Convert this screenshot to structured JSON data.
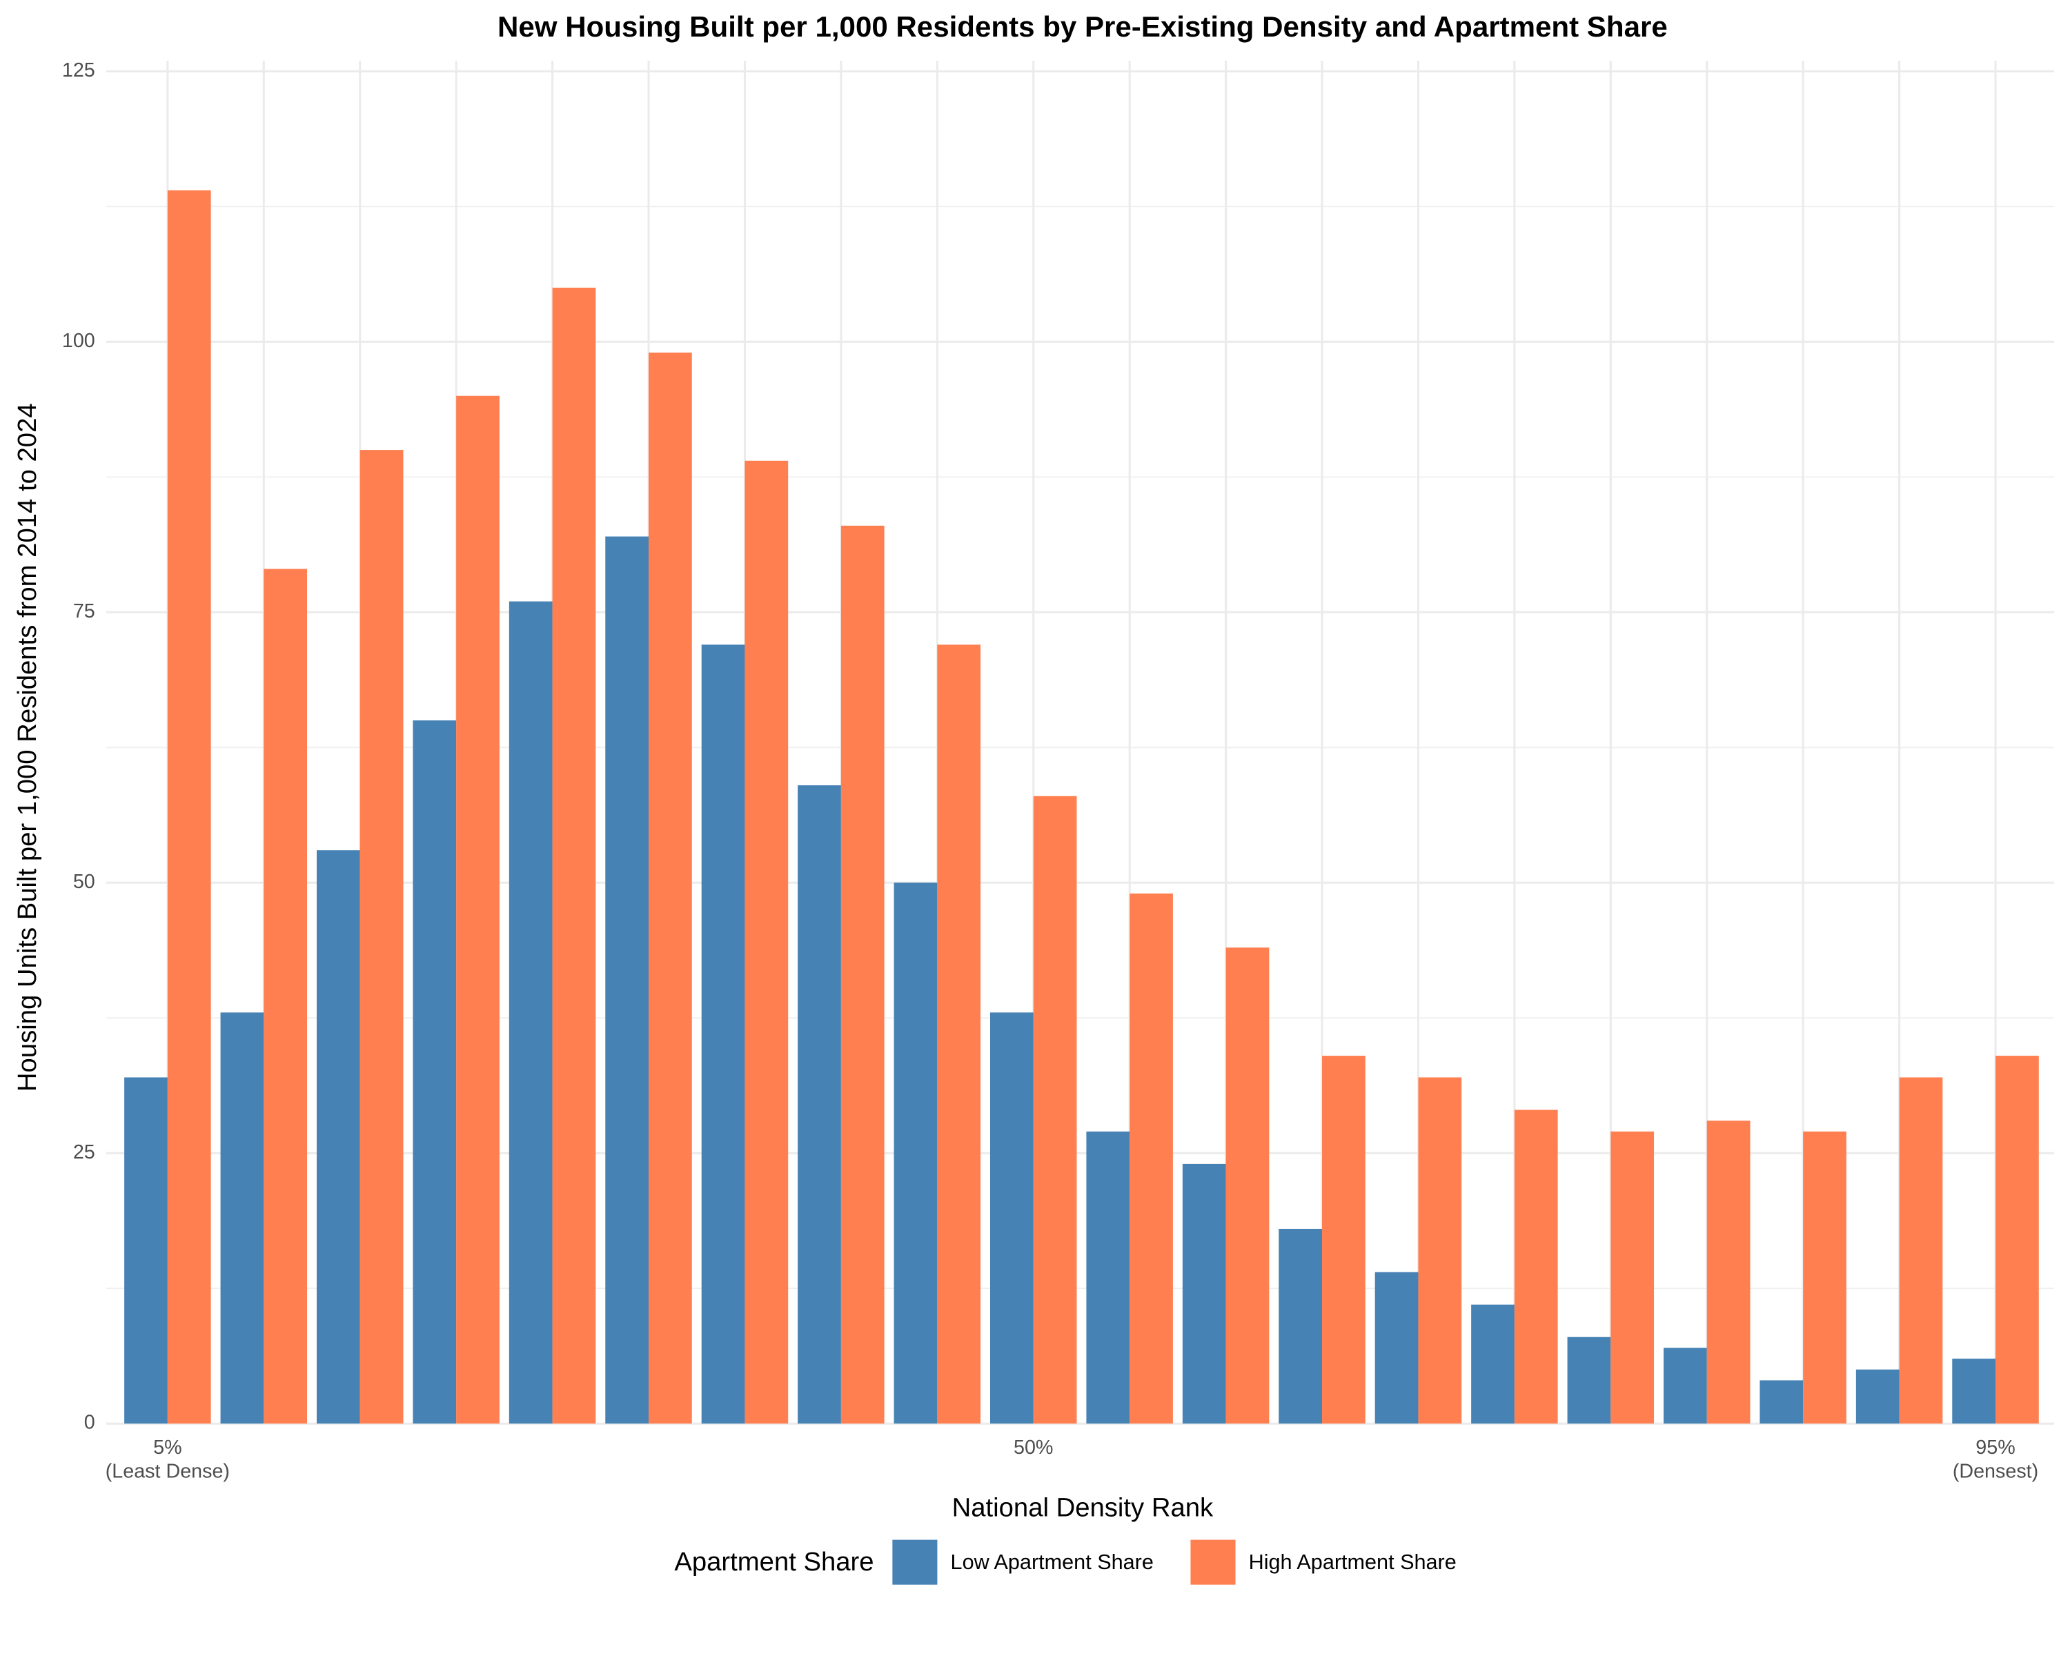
{
  "chart_data": {
    "type": "bar",
    "title": "New Housing Built per 1,000 Residents by Pre-Existing Density and Apartment Share",
    "x_label": "National Density Rank",
    "y_label": "Housing Units Built per 1,000 Residents from 2014 to 2024",
    "legend_title": "Apartment Share",
    "legend_position": "bottom",
    "grid": true,
    "categories": [
      "5%\n(Least Dense)",
      null,
      null,
      null,
      null,
      null,
      null,
      null,
      null,
      "50%",
      null,
      null,
      null,
      null,
      null,
      null,
      null,
      null,
      null,
      "95%\n(Densest)"
    ],
    "series": [
      {
        "name": "Low Apartment Share",
        "color": "#4682b4",
        "values": [
          32,
          38,
          53,
          65,
          76,
          82,
          72,
          59,
          50,
          38,
          27,
          24,
          18,
          14,
          11,
          8,
          7,
          4,
          5,
          6
        ]
      },
      {
        "name": "High Apartment Share",
        "color": "#ff7f50",
        "values": [
          114,
          79,
          90,
          95,
          105,
          99,
          89,
          83,
          72,
          58,
          49,
          44,
          34,
          32,
          29,
          27,
          28,
          27,
          32,
          34
        ]
      }
    ],
    "ylim": [
      0,
      125
    ],
    "yticks": [
      0,
      25,
      50,
      75,
      100,
      125
    ]
  }
}
